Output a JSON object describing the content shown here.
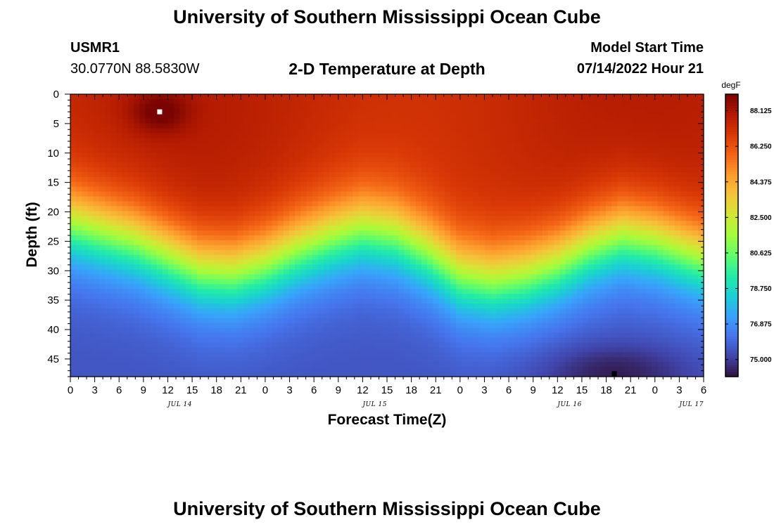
{
  "header": {
    "title": "University of Southern Mississippi Ocean Cube",
    "station_id": "USMR1",
    "coordinates": "30.0770N  88.5830W",
    "plot_title": "2-D Temperature at Depth",
    "model_start_label": "Model Start Time",
    "model_start_value": "07/14/2022 Hour 21"
  },
  "footer": {
    "title": "University of Southern Mississippi Ocean Cube"
  },
  "chart_data": {
    "type": "heatmap",
    "title": "2-D Temperature at Depth",
    "xlabel": "Forecast Time(Z)",
    "ylabel": "Depth (ft)",
    "x_ticks": [
      "0",
      "3",
      "6",
      "9",
      "12",
      "15",
      "18",
      "21",
      "0",
      "3",
      "6",
      "9",
      "12",
      "15",
      "18",
      "21",
      "0",
      "3",
      "6",
      "9",
      "12",
      "15",
      "18",
      "21",
      "0",
      "3",
      "6"
    ],
    "x_date_labels": [
      {
        "label": "JUL 14",
        "tick_index": 4.5
      },
      {
        "label": "JUL 15",
        "tick_index": 12.5
      },
      {
        "label": "JUL 16",
        "tick_index": 20.5
      },
      {
        "label": "JUL 17",
        "tick_index": 25.5
      }
    ],
    "x_range_hours": [
      0,
      78
    ],
    "y_ticks": [
      0,
      5,
      10,
      15,
      20,
      25,
      30,
      35,
      40,
      45
    ],
    "y_range_ft": [
      0,
      48
    ],
    "y_inverted": true,
    "colorbar": {
      "unit": "degF",
      "ticks": [
        "88.125",
        "86.250",
        "84.375",
        "82.500",
        "80.625",
        "78.750",
        "76.875",
        "75.000"
      ],
      "range": [
        74.1,
        89.0
      ],
      "colors": [
        "#30123b",
        "#4145ab",
        "#4675ed",
        "#39a2fc",
        "#1bcfd4",
        "#24eca6",
        "#61fc6c",
        "#a4fc3b",
        "#d1e834",
        "#f3c63a",
        "#fe9b2d",
        "#f36315",
        "#d93806",
        "#b11901",
        "#7a0403"
      ]
    },
    "thermocline_depth_ft": [
      {
        "hour": 0,
        "depth": 22.0
      },
      {
        "hour": 4,
        "depth": 23.5
      },
      {
        "hour": 8,
        "depth": 25.0
      },
      {
        "hour": 12,
        "depth": 27.5
      },
      {
        "hour": 16,
        "depth": 30.0
      },
      {
        "hour": 20,
        "depth": 30.5
      },
      {
        "hour": 24,
        "depth": 29.0
      },
      {
        "hour": 28,
        "depth": 26.5
      },
      {
        "hour": 32,
        "depth": 24.5
      },
      {
        "hour": 36,
        "depth": 23.0
      },
      {
        "hour": 40,
        "depth": 24.0
      },
      {
        "hour": 44,
        "depth": 27.0
      },
      {
        "hour": 48,
        "depth": 31.0
      },
      {
        "hour": 52,
        "depth": 32.0
      },
      {
        "hour": 56,
        "depth": 31.0
      },
      {
        "hour": 60,
        "depth": 29.0
      },
      {
        "hour": 64,
        "depth": 26.0
      },
      {
        "hour": 68,
        "depth": 24.0
      },
      {
        "hour": 72,
        "depth": 25.0
      },
      {
        "hour": 76,
        "depth": 27.0
      },
      {
        "hour": 78,
        "depth": 28.0
      }
    ],
    "surface_temp_degF": 87.5,
    "deep_temp_degF": 75.5,
    "warm_spot": {
      "hour": 11,
      "depth_ft": 3,
      "temp_degF": 89.0
    },
    "cold_spot": {
      "hour": 67,
      "depth_ft": 47.5,
      "temp_degF": 74.3
    },
    "markers": [
      {
        "name": "max-marker",
        "hour": 11,
        "depth_ft": 3,
        "color": "#ffffff"
      },
      {
        "name": "min-marker",
        "hour": 67,
        "depth_ft": 47.5,
        "color": "#000000"
      }
    ]
  }
}
